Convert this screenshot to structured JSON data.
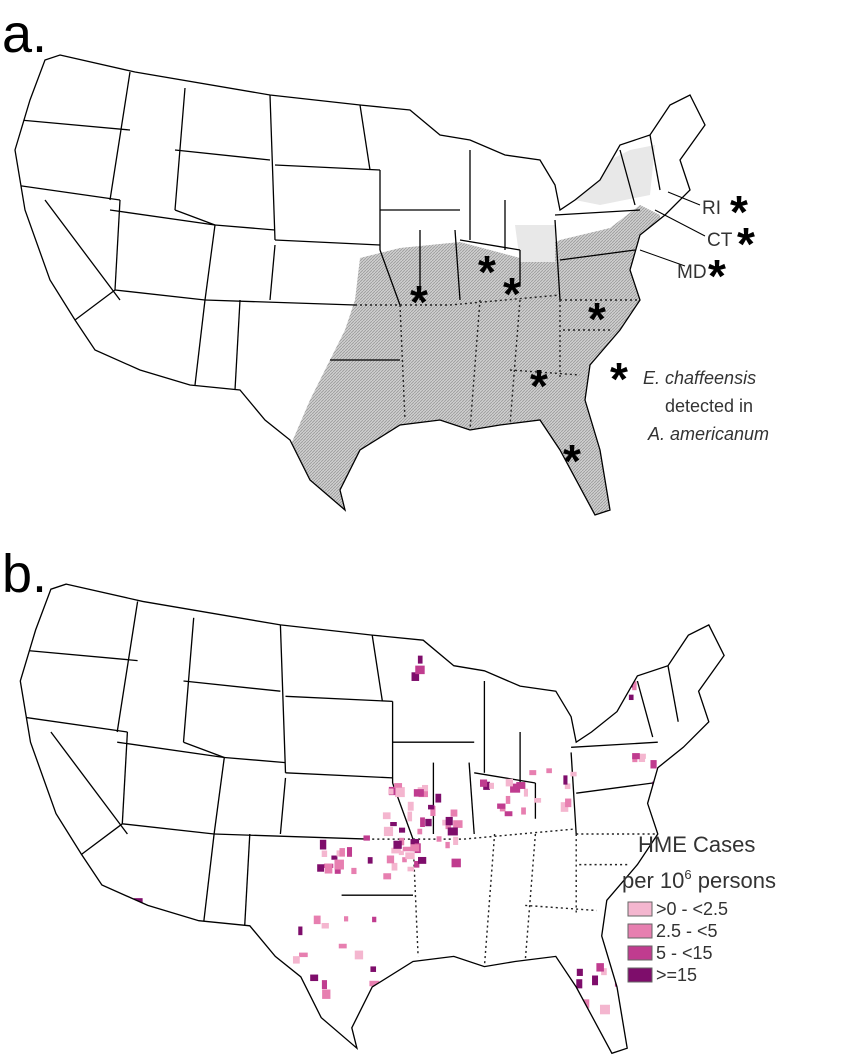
{
  "panels": [
    {
      "label": "a.",
      "callouts": [
        "RI",
        "CT",
        "MD"
      ],
      "marker": "*",
      "legend": {
        "lines": [
          "E. chaffeensis",
          "detected in",
          "A. americanum"
        ]
      }
    },
    {
      "label": "b.",
      "legend": {
        "title": "HME Cases",
        "subtitle": {
          "prefix": "per 10",
          "sup": "6",
          "suffix": " persons"
        },
        "items": [
          {
            "label": ">0 - <2.5",
            "color": "#f4b6cf"
          },
          {
            "label": "2.5 - <5",
            "color": "#e77fb0"
          },
          {
            "label": "5 - <15",
            "color": "#c03c8f"
          },
          {
            "label": ">=15",
            "color": "#7e0d6b"
          }
        ]
      }
    }
  ]
}
